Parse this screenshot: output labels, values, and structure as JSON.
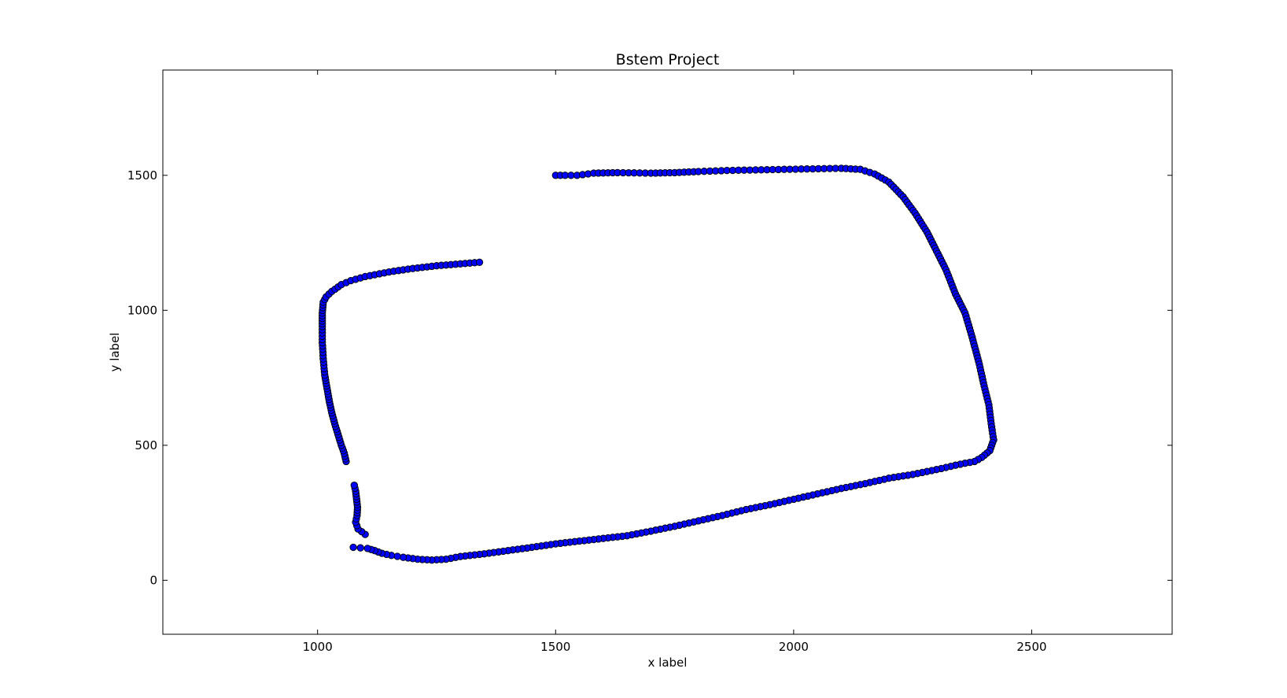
{
  "chart_data": {
    "type": "scatter",
    "title": "Bstem Project",
    "xlabel": "x label",
    "ylabel": "y label",
    "xlim": [
      675,
      2795
    ],
    "ylim": [
      -200,
      1890
    ],
    "xticks": [
      1000,
      1500,
      2000,
      2500
    ],
    "yticks": [
      0,
      500,
      1000,
      1500
    ],
    "grid": false,
    "marker_color": "#0000ff",
    "marker_edge_color": "#000000",
    "path_segments": [
      [
        [
          1500,
          1500
        ],
        [
          1520,
          1500
        ],
        [
          1545,
          1500
        ],
        [
          1580,
          1508
        ],
        [
          1630,
          1510
        ],
        [
          1700,
          1508
        ],
        [
          1750,
          1510
        ],
        [
          1800,
          1514
        ],
        [
          1860,
          1518
        ],
        [
          1920,
          1520
        ],
        [
          1980,
          1522
        ],
        [
          2040,
          1524
        ],
        [
          2100,
          1526
        ],
        [
          2140,
          1522
        ],
        [
          2170,
          1505
        ],
        [
          2200,
          1475
        ],
        [
          2230,
          1420
        ],
        [
          2255,
          1360
        ],
        [
          2280,
          1290
        ],
        [
          2300,
          1220
        ],
        [
          2320,
          1150
        ],
        [
          2340,
          1060
        ],
        [
          2360,
          990
        ],
        [
          2375,
          900
        ],
        [
          2390,
          800
        ],
        [
          2400,
          720
        ],
        [
          2410,
          650
        ],
        [
          2415,
          580
        ],
        [
          2420,
          520
        ],
        [
          2412,
          480
        ],
        [
          2395,
          455
        ],
        [
          2380,
          440
        ],
        [
          2350,
          430
        ],
        [
          2300,
          410
        ],
        [
          2250,
          392
        ],
        [
          2200,
          378
        ],
        [
          2150,
          358
        ],
        [
          2100,
          340
        ],
        [
          2050,
          320
        ],
        [
          2000,
          300
        ],
        [
          1950,
          280
        ],
        [
          1900,
          262
        ],
        [
          1850,
          240
        ],
        [
          1800,
          220
        ],
        [
          1750,
          200
        ],
        [
          1700,
          182
        ],
        [
          1650,
          165
        ],
        [
          1600,
          155
        ],
        [
          1550,
          145
        ],
        [
          1500,
          135
        ],
        [
          1450,
          122
        ],
        [
          1400,
          110
        ],
        [
          1350,
          98
        ],
        [
          1300,
          88
        ],
        [
          1270,
          78
        ],
        [
          1240,
          75
        ],
        [
          1210,
          78
        ],
        [
          1180,
          85
        ],
        [
          1155,
          92
        ],
        [
          1135,
          100
        ],
        [
          1120,
          110
        ],
        [
          1105,
          118
        ],
        [
          1090,
          120
        ],
        [
          1075,
          122
        ]
      ],
      [
        [
          1100,
          170
        ],
        [
          1085,
          190
        ],
        [
          1080,
          215
        ],
        [
          1083,
          240
        ],
        [
          1084,
          270
        ],
        [
          1082,
          300
        ],
        [
          1080,
          330
        ],
        [
          1077,
          352
        ]
      ],
      [
        [
          1060,
          440
        ],
        [
          1056,
          470
        ],
        [
          1050,
          500
        ],
        [
          1043,
          540
        ],
        [
          1036,
          580
        ],
        [
          1030,
          620
        ],
        [
          1025,
          660
        ],
        [
          1020,
          710
        ],
        [
          1015,
          760
        ],
        [
          1012,
          820
        ],
        [
          1010,
          880
        ],
        [
          1010,
          940
        ],
        [
          1010,
          990
        ],
        [
          1012,
          1030
        ],
        [
          1018,
          1050
        ],
        [
          1030,
          1070
        ],
        [
          1050,
          1095
        ],
        [
          1070,
          1110
        ],
        [
          1100,
          1125
        ],
        [
          1150,
          1142
        ],
        [
          1200,
          1155
        ],
        [
          1250,
          1165
        ],
        [
          1300,
          1172
        ],
        [
          1340,
          1178
        ]
      ]
    ]
  }
}
